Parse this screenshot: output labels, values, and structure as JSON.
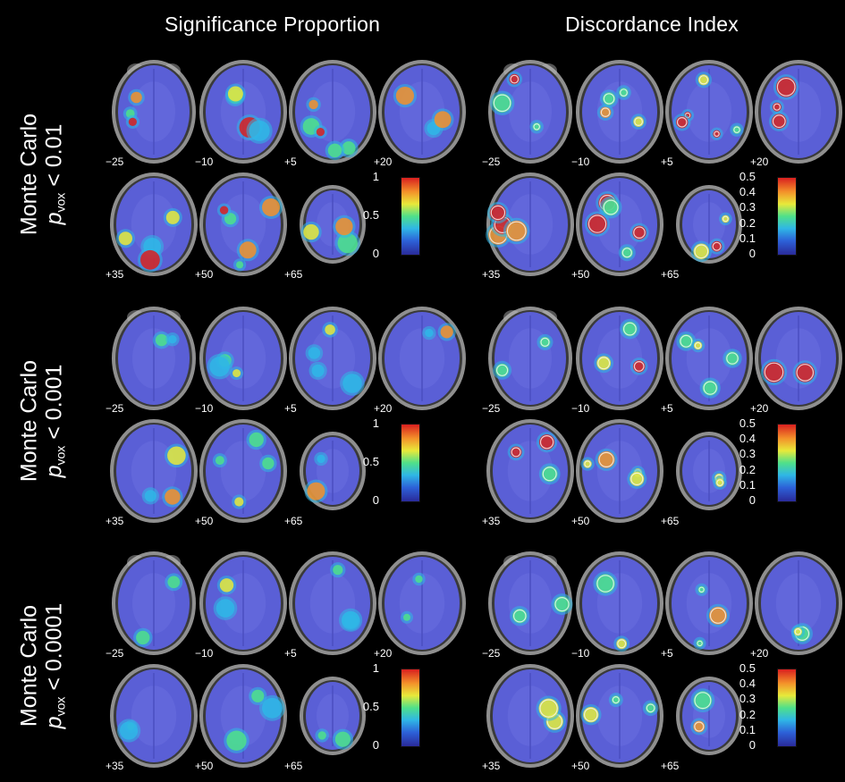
{
  "columns": {
    "left_title": "Significance Proportion",
    "right_title": "Discordance Index"
  },
  "rows": [
    {
      "line1": "Monte Carlo",
      "p": "p",
      "sub": "vox",
      "threshold": " < 0.01"
    },
    {
      "line1": "Monte Carlo",
      "p": "p",
      "sub": "vox",
      "threshold": " < 0.001"
    },
    {
      "line1": "Monte Carlo",
      "p": "p",
      "sub": "vox",
      "threshold": " < 0.0001"
    }
  ],
  "slice_labels": [
    "−25",
    "−10",
    "+5",
    "+20",
    "+35",
    "+50",
    "+65"
  ],
  "colorbar_left_ticks": [
    "1",
    "0.5",
    "0"
  ],
  "colorbar_right_ticks": [
    "0.5",
    "0.4",
    "0.3",
    "0.2",
    "0.1",
    "0"
  ],
  "colors": {
    "background": "#000000",
    "brain_fill": "#5a5fd6",
    "skull": "#8a8a8a"
  }
}
